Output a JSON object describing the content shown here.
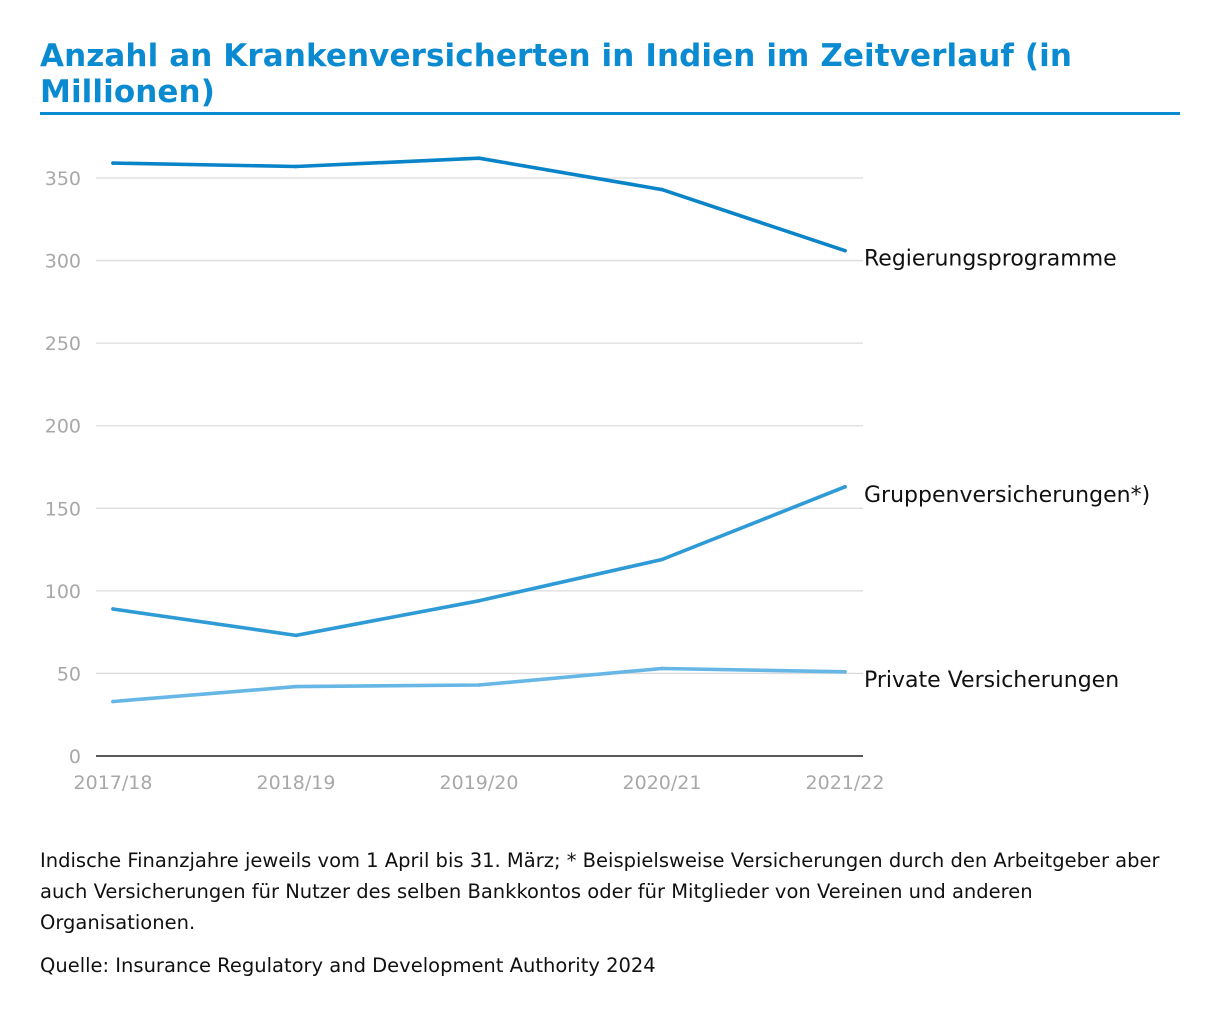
{
  "title": "Anzahl an Krankenversicherten in Indien im Zeitverlauf (in Millionen)",
  "notes": "Indische Finanzjahre jeweils vom 1 April bis 31. März; * Beispielsweise Versicherungen durch den Arbeitgeber aber auch Versicherungen für Nutzer des selben Bankkontos oder für Mitglieder von Vereinen und anderen Organisationen.",
  "source": "Quelle: Insurance Regulatory and Development Authority 2024",
  "chart_data": {
    "type": "line",
    "title": "Anzahl an Krankenversicherten in Indien im Zeitverlauf (in Millionen)",
    "xlabel": "",
    "ylabel": "",
    "categories": [
      "2017/18",
      "2018/19",
      "2019/20",
      "2020/21",
      "2021/22"
    ],
    "ylim": [
      0,
      375
    ],
    "yticks": [
      0,
      50,
      100,
      150,
      200,
      250,
      300,
      350
    ],
    "grid": "horizontal",
    "legend": "direct labels at line ends (right)",
    "series": [
      {
        "name": "Regierungsprogramme",
        "values": [
          359,
          357,
          362,
          343,
          306
        ],
        "color": "#0a84c8"
      },
      {
        "name": "Gruppenversicherungen*)",
        "values": [
          89,
          73,
          94,
          119,
          163
        ],
        "color": "#2e9ad6"
      },
      {
        "name": "Private Versicherungen",
        "values": [
          33,
          42,
          43,
          53,
          51
        ],
        "color": "#67b7e6"
      }
    ]
  }
}
